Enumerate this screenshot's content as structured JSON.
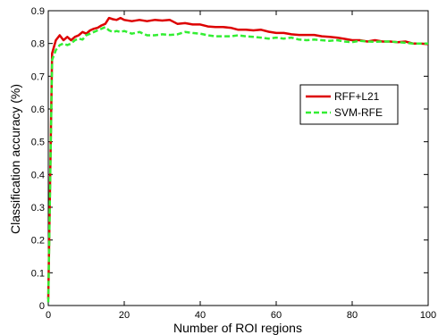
{
  "chart_data": {
    "type": "line",
    "xlabel": "Number of ROI regions",
    "ylabel": "Classification accuracy (%)",
    "xlim": [
      0,
      100
    ],
    "ylim": [
      0,
      0.9
    ],
    "xticks": [
      0,
      20,
      40,
      60,
      80,
      100
    ],
    "yticks": [
      0,
      0.1,
      0.2,
      0.3,
      0.4,
      0.5,
      0.6,
      0.7,
      0.8,
      0.9
    ],
    "grid": false,
    "legend_position": "right",
    "series": [
      {
        "name": "RFF+L21",
        "color": "#dd0000",
        "line_style": "solid",
        "x": [
          0,
          1,
          2,
          3,
          4,
          5,
          6,
          7,
          8,
          9,
          10,
          11,
          12,
          13,
          14,
          15,
          16,
          17,
          18,
          19,
          20,
          22,
          24,
          26,
          28,
          30,
          32,
          34,
          36,
          38,
          40,
          42,
          44,
          46,
          48,
          50,
          52,
          54,
          56,
          58,
          60,
          62,
          64,
          66,
          68,
          70,
          72,
          74,
          76,
          78,
          80,
          82,
          84,
          86,
          88,
          90,
          92,
          94,
          96,
          98,
          100
        ],
        "y": [
          0.02,
          0.77,
          0.81,
          0.825,
          0.81,
          0.82,
          0.81,
          0.82,
          0.825,
          0.835,
          0.83,
          0.84,
          0.845,
          0.848,
          0.855,
          0.86,
          0.878,
          0.874,
          0.872,
          0.878,
          0.872,
          0.868,
          0.872,
          0.868,
          0.872,
          0.87,
          0.872,
          0.86,
          0.862,
          0.858,
          0.858,
          0.852,
          0.85,
          0.85,
          0.848,
          0.842,
          0.842,
          0.84,
          0.842,
          0.836,
          0.832,
          0.832,
          0.828,
          0.826,
          0.826,
          0.826,
          0.822,
          0.82,
          0.818,
          0.814,
          0.81,
          0.81,
          0.806,
          0.81,
          0.806,
          0.806,
          0.804,
          0.806,
          0.8,
          0.8,
          0.798
        ]
      },
      {
        "name": "SVM-RFE",
        "color": "#33ee33",
        "line_style": "dashed",
        "x": [
          0,
          1,
          2,
          3,
          4,
          5,
          6,
          7,
          8,
          9,
          10,
          11,
          12,
          13,
          14,
          15,
          16,
          17,
          18,
          19,
          20,
          22,
          24,
          26,
          28,
          30,
          32,
          34,
          36,
          38,
          40,
          42,
          44,
          46,
          48,
          50,
          52,
          54,
          56,
          58,
          60,
          62,
          64,
          66,
          68,
          70,
          72,
          74,
          76,
          78,
          80,
          82,
          84,
          86,
          88,
          90,
          92,
          94,
          96,
          98,
          100
        ],
        "y": [
          0.01,
          0.75,
          0.78,
          0.795,
          0.8,
          0.795,
          0.8,
          0.81,
          0.815,
          0.812,
          0.825,
          0.83,
          0.835,
          0.84,
          0.845,
          0.85,
          0.84,
          0.835,
          0.838,
          0.835,
          0.838,
          0.83,
          0.835,
          0.825,
          0.825,
          0.828,
          0.826,
          0.828,
          0.835,
          0.832,
          0.83,
          0.825,
          0.822,
          0.822,
          0.822,
          0.825,
          0.822,
          0.82,
          0.818,
          0.815,
          0.818,
          0.815,
          0.818,
          0.812,
          0.81,
          0.812,
          0.81,
          0.808,
          0.81,
          0.806,
          0.804,
          0.808,
          0.806,
          0.805,
          0.806,
          0.806,
          0.804,
          0.802,
          0.8,
          0.8,
          0.8
        ]
      }
    ]
  }
}
